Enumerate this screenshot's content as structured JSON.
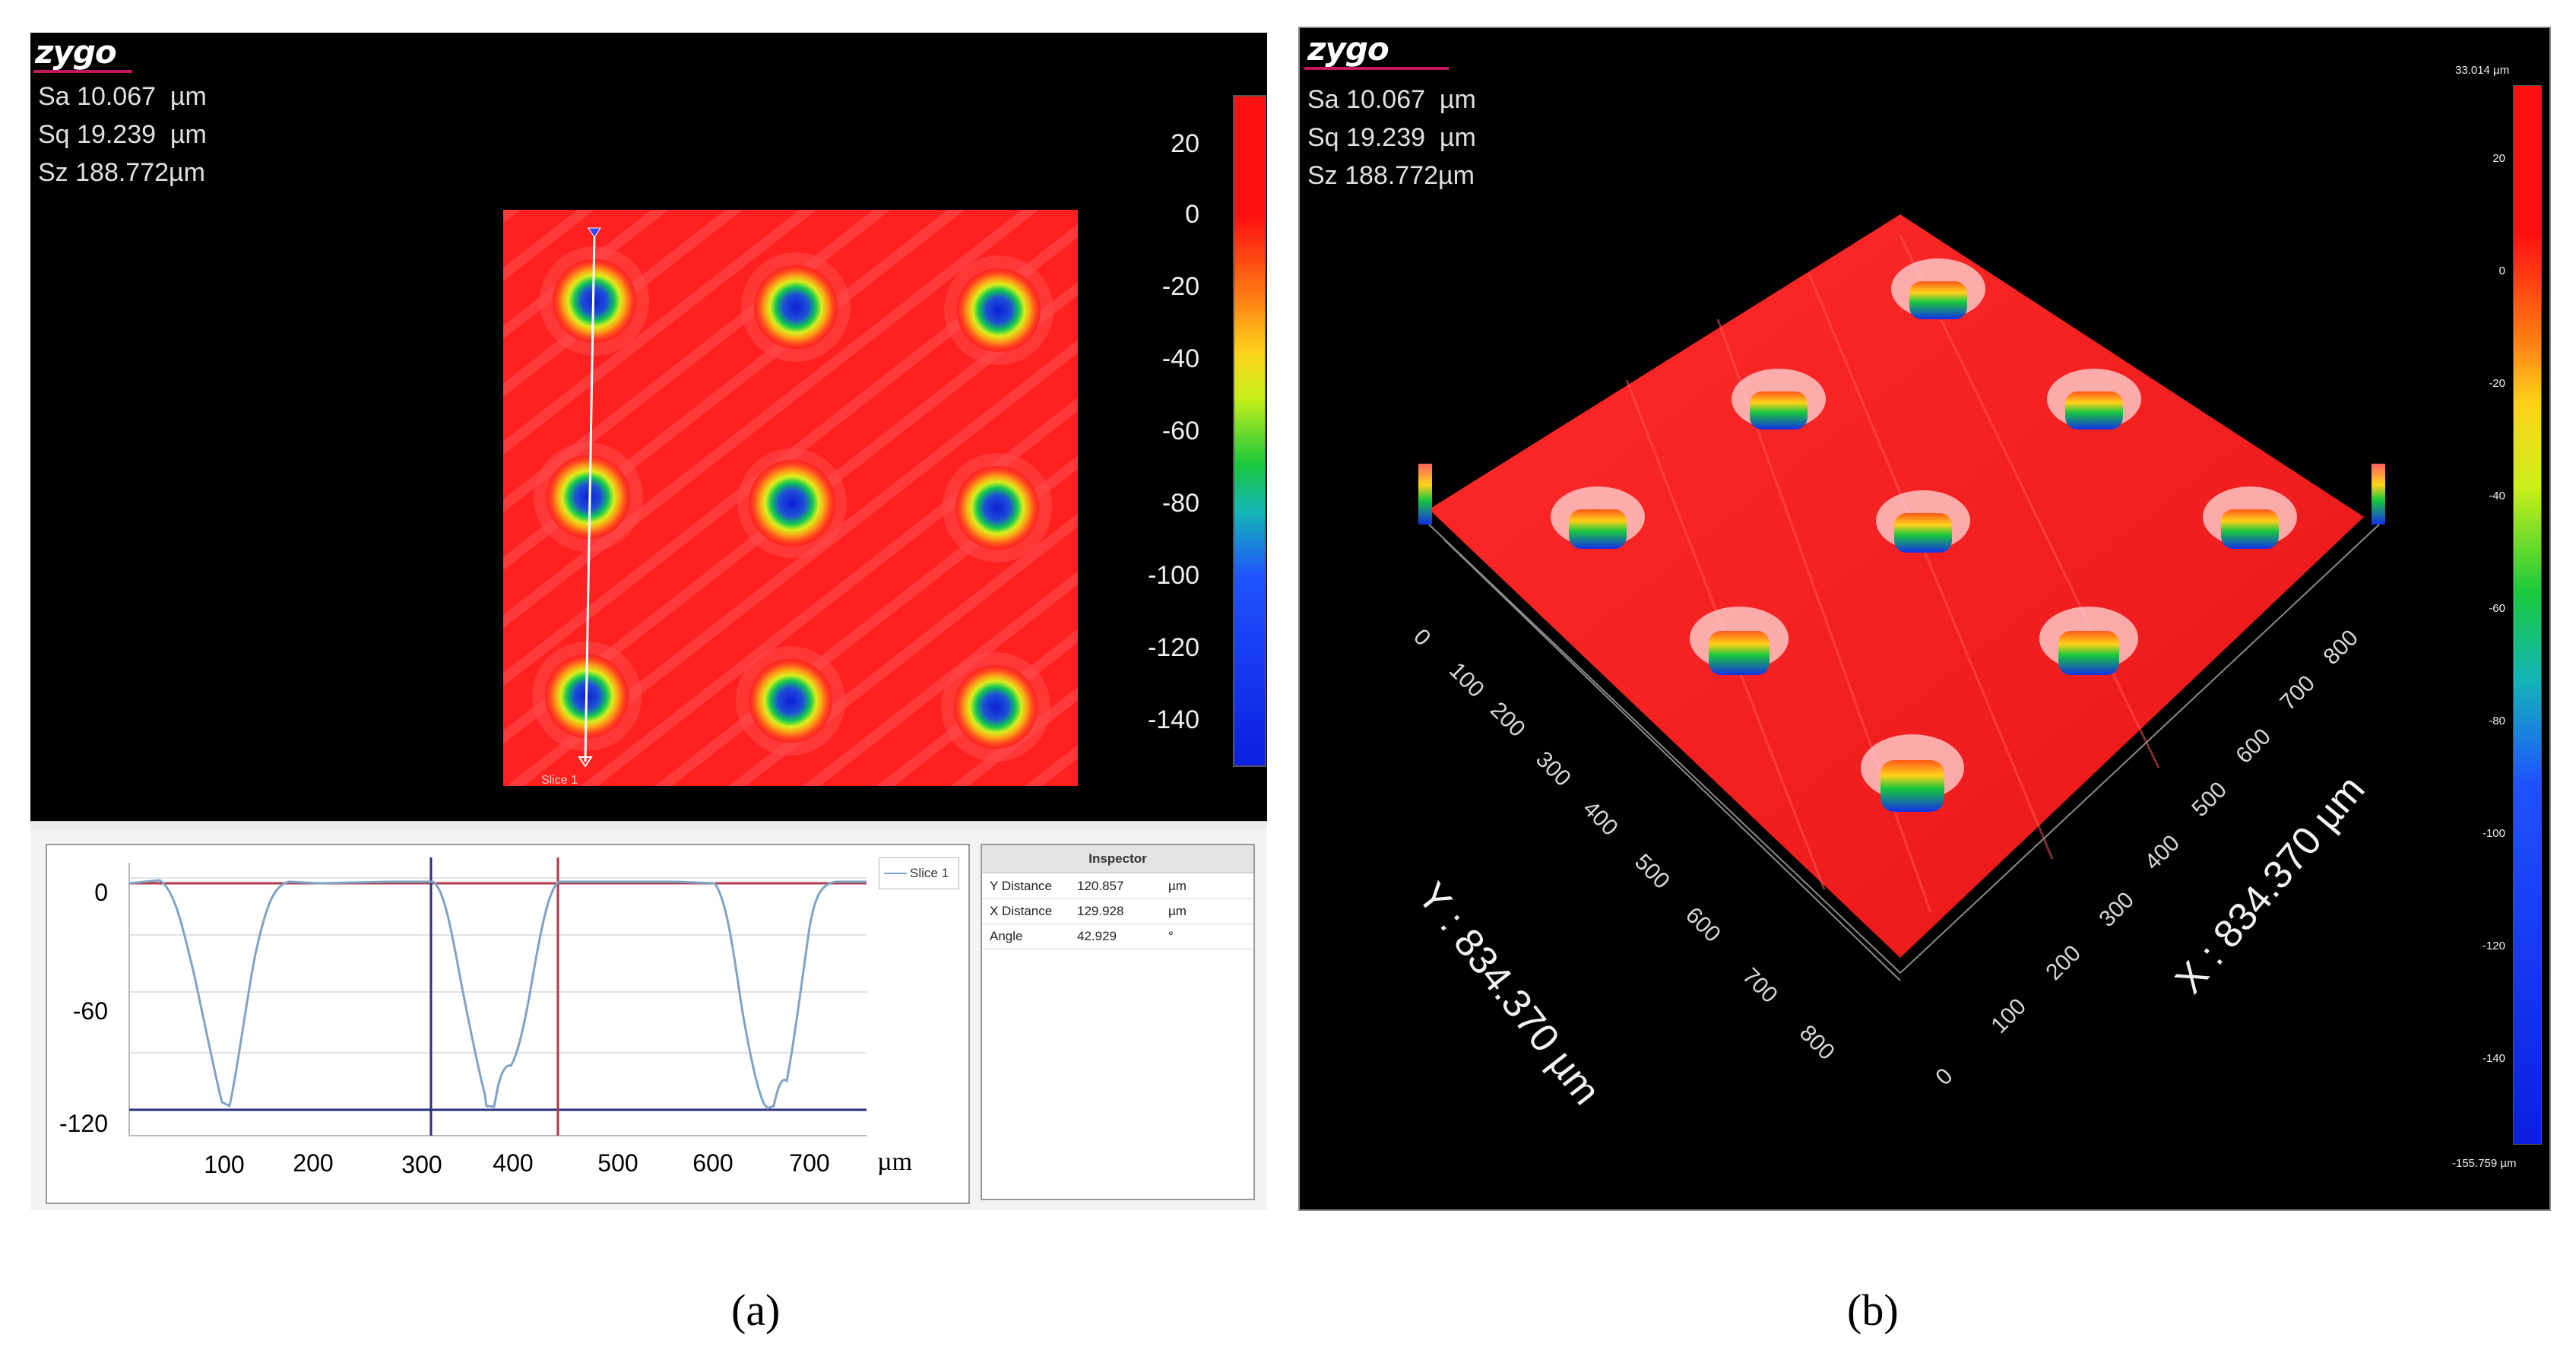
{
  "panel_a": {
    "logo": "zygo",
    "stats": [
      "Sa 10.067  µm",
      "Sq 19.239  µm",
      "Sz 188.772µm"
    ],
    "colorbar_ticks": [
      "20",
      "0",
      "-20",
      "-40",
      "-60",
      "-80",
      "-100",
      "-120",
      "-140"
    ],
    "slice_marker": "Slice 1",
    "profile": {
      "y_ticks": [
        "0",
        "-60",
        "-120"
      ],
      "x_ticks": [
        "100",
        "200",
        "300",
        "400",
        "500",
        "600",
        "700"
      ],
      "x_unit": "µm",
      "legend": "Slice 1"
    },
    "inspector": {
      "title": "Inspector",
      "rows": [
        {
          "label": "Y Distance",
          "value": "120.857",
          "unit": "µm"
        },
        {
          "label": "X Distance",
          "value": "129.928",
          "unit": "µm"
        },
        {
          "label": "Angle",
          "value": "42.929",
          "unit": "°"
        }
      ]
    },
    "caption": "(a)"
  },
  "panel_b": {
    "logo": "zygo",
    "stats": [
      "Sa 10.067  µm",
      "Sq 19.239  µm",
      "Sz 188.772µm"
    ],
    "colorbar_max": "33.014 µm",
    "colorbar_min": "-155.759 µm",
    "colorbar_ticks": [
      "20",
      "0",
      "-20",
      "-40",
      "-60",
      "-80",
      "-100",
      "-120",
      "-140"
    ],
    "x_axis_title": "X : 834.370 µm",
    "y_axis_title": "Y : 834.370 µm",
    "x_axis_ticks": [
      "0",
      "100",
      "200",
      "300",
      "400",
      "500",
      "600",
      "700",
      "800"
    ],
    "y_axis_ticks": [
      "0",
      "100",
      "200",
      "300",
      "400",
      "500",
      "600",
      "700",
      "800"
    ],
    "caption": "(b)"
  },
  "colors": {
    "surface": "#ff1f1f",
    "background": "#000000",
    "profile_line": "#7fa3c4",
    "ref_red": "#b03a48",
    "ref_blue": "#2a2f80"
  }
}
